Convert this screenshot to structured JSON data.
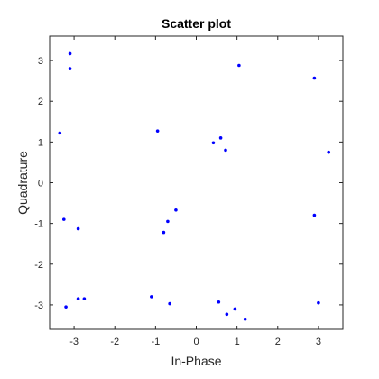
{
  "chart_data": {
    "type": "scatter",
    "title": "Scatter plot",
    "xlabel": "In-Phase",
    "ylabel": "Quadrature",
    "xlim": [
      -3.6,
      3.6
    ],
    "ylim": [
      -3.6,
      3.6
    ],
    "xticks": [
      -3,
      -2,
      -1,
      0,
      1,
      2,
      3
    ],
    "yticks": [
      -3,
      -2,
      -1,
      0,
      1,
      2,
      3
    ],
    "grid": false,
    "marker_color": "#0000ff",
    "points": [
      {
        "x": -3.1,
        "y": 3.17
      },
      {
        "x": -3.1,
        "y": 2.8
      },
      {
        "x": -3.35,
        "y": 1.22
      },
      {
        "x": -0.95,
        "y": 1.27
      },
      {
        "x": 0.42,
        "y": 0.98
      },
      {
        "x": 0.6,
        "y": 1.1
      },
      {
        "x": 0.72,
        "y": 0.8
      },
      {
        "x": 1.05,
        "y": 2.88
      },
      {
        "x": 2.9,
        "y": 2.57
      },
      {
        "x": 3.25,
        "y": 0.75
      },
      {
        "x": -3.25,
        "y": -0.9
      },
      {
        "x": -2.9,
        "y": -1.13
      },
      {
        "x": -0.5,
        "y": -0.67
      },
      {
        "x": -0.7,
        "y": -0.95
      },
      {
        "x": -0.8,
        "y": -1.22
      },
      {
        "x": 2.9,
        "y": -0.8
      },
      {
        "x": -3.2,
        "y": -3.05
      },
      {
        "x": -2.9,
        "y": -2.85
      },
      {
        "x": -2.75,
        "y": -2.85
      },
      {
        "x": -1.1,
        "y": -2.8
      },
      {
        "x": -0.65,
        "y": -2.97
      },
      {
        "x": 0.55,
        "y": -2.93
      },
      {
        "x": 0.75,
        "y": -3.23
      },
      {
        "x": 0.95,
        "y": -3.1
      },
      {
        "x": 1.2,
        "y": -3.35
      },
      {
        "x": 3.0,
        "y": -2.95
      }
    ]
  }
}
